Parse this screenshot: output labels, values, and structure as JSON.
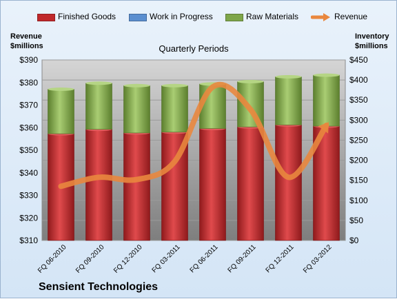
{
  "legend": [
    {
      "label": "Finished Goods",
      "color": "#c0282b"
    },
    {
      "label": "Work in Progress",
      "color": "#5b8fd0"
    },
    {
      "label": "Raw Materials",
      "color": "#7ea64a"
    },
    {
      "label": "Revenue",
      "color": "#e9873e"
    }
  ],
  "left_axis_title": {
    "line1": "Revenue",
    "line2": "$millions"
  },
  "right_axis_title": {
    "line1": "Inventory",
    "line2": "$millions"
  },
  "company": "Sensient Technologies",
  "chart_data": {
    "type": "bar",
    "title": "Quarterly Periods",
    "categories": [
      "FQ 06-2010",
      "FQ 09-2010",
      "FQ 12-2010",
      "FQ 03-2011",
      "FQ 06-2011",
      "FQ 09-2011",
      "FQ 12-2011",
      "FQ 03-2012"
    ],
    "series": [
      {
        "name": "Finished Goods",
        "axis": "right",
        "stacked": true,
        "color": "#c0282b",
        "values": [
          266,
          277,
          268,
          270,
          279,
          283,
          288,
          285
        ]
      },
      {
        "name": "Work in Progress",
        "axis": "right",
        "stacked": true,
        "color": "#5b8fd0",
        "values": [
          0,
          0,
          0,
          0,
          0,
          0,
          0,
          0
        ]
      },
      {
        "name": "Raw Materials",
        "axis": "right",
        "stacked": true,
        "color": "#7ea64a",
        "values": [
          111,
          115,
          118,
          116,
          111,
          113,
          120,
          127
        ]
      },
      {
        "name": "Revenue",
        "axis": "left",
        "type": "line",
        "color": "#e9873e",
        "values": [
          334,
          338,
          337,
          345,
          378,
          368,
          338,
          361
        ]
      }
    ],
    "left_axis": {
      "min": 310,
      "max": 390,
      "step": 10,
      "ticks": [
        "$310",
        "$320",
        "$330",
        "$340",
        "$350",
        "$360",
        "$370",
        "$380",
        "$390"
      ]
    },
    "right_axis": {
      "min": 0,
      "max": 450,
      "step": 50,
      "ticks": [
        "$0",
        "$50",
        "$100",
        "$150",
        "$200",
        "$250",
        "$300",
        "$350",
        "$400",
        "$450"
      ]
    },
    "grid": true,
    "legend_position": "top"
  }
}
